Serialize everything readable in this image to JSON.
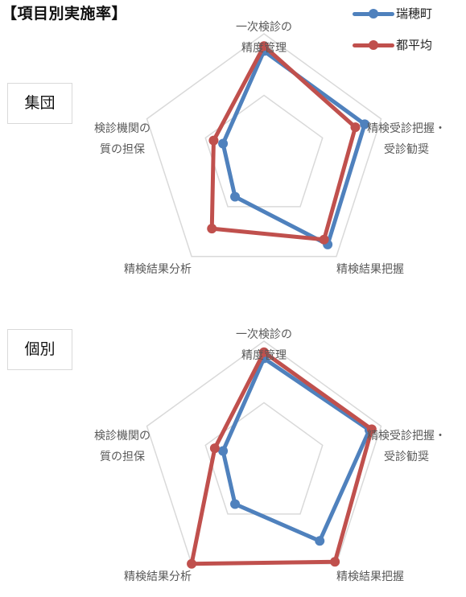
{
  "title": "【項目別実施率】",
  "legend": [
    {
      "name": "瑞穂町",
      "color": "#4f81bd"
    },
    {
      "name": "都平均",
      "color": "#c0504d"
    }
  ],
  "chart_data": [
    {
      "type": "radar",
      "section_label": "集団",
      "axes": [
        [
          "一次検診の",
          "精度管理"
        ],
        [
          "精検受診把握・",
          "受診勧奨"
        ],
        [
          "精検結果把握"
        ],
        [
          "精検結果分析"
        ],
        [
          "検診機関の",
          "質の担保"
        ]
      ],
      "range": [
        0,
        100
      ],
      "series": [
        {
          "name": "瑞穂町",
          "color": "#4f81bd",
          "values": [
            86,
            86,
            88,
            40,
            35
          ]
        },
        {
          "name": "都平均",
          "color": "#c0504d",
          "values": [
            90,
            78,
            83,
            72,
            43
          ]
        }
      ]
    },
    {
      "type": "radar",
      "section_label": "個別",
      "axes": [
        [
          "一次検診の",
          "精度管理"
        ],
        [
          "精検受診把握・",
          "受診勧奨"
        ],
        [
          "精検結果把握"
        ],
        [
          "精検結果分析"
        ],
        [
          "検診機関の",
          "質の担保"
        ]
      ],
      "range": [
        0,
        100
      ],
      "series": [
        {
          "name": "瑞穂町",
          "color": "#4f81bd",
          "values": [
            86,
            90,
            77,
            40,
            35
          ]
        },
        {
          "name": "都平均",
          "color": "#c0504d",
          "values": [
            91,
            92,
            98,
            100,
            42
          ]
        }
      ]
    }
  ]
}
